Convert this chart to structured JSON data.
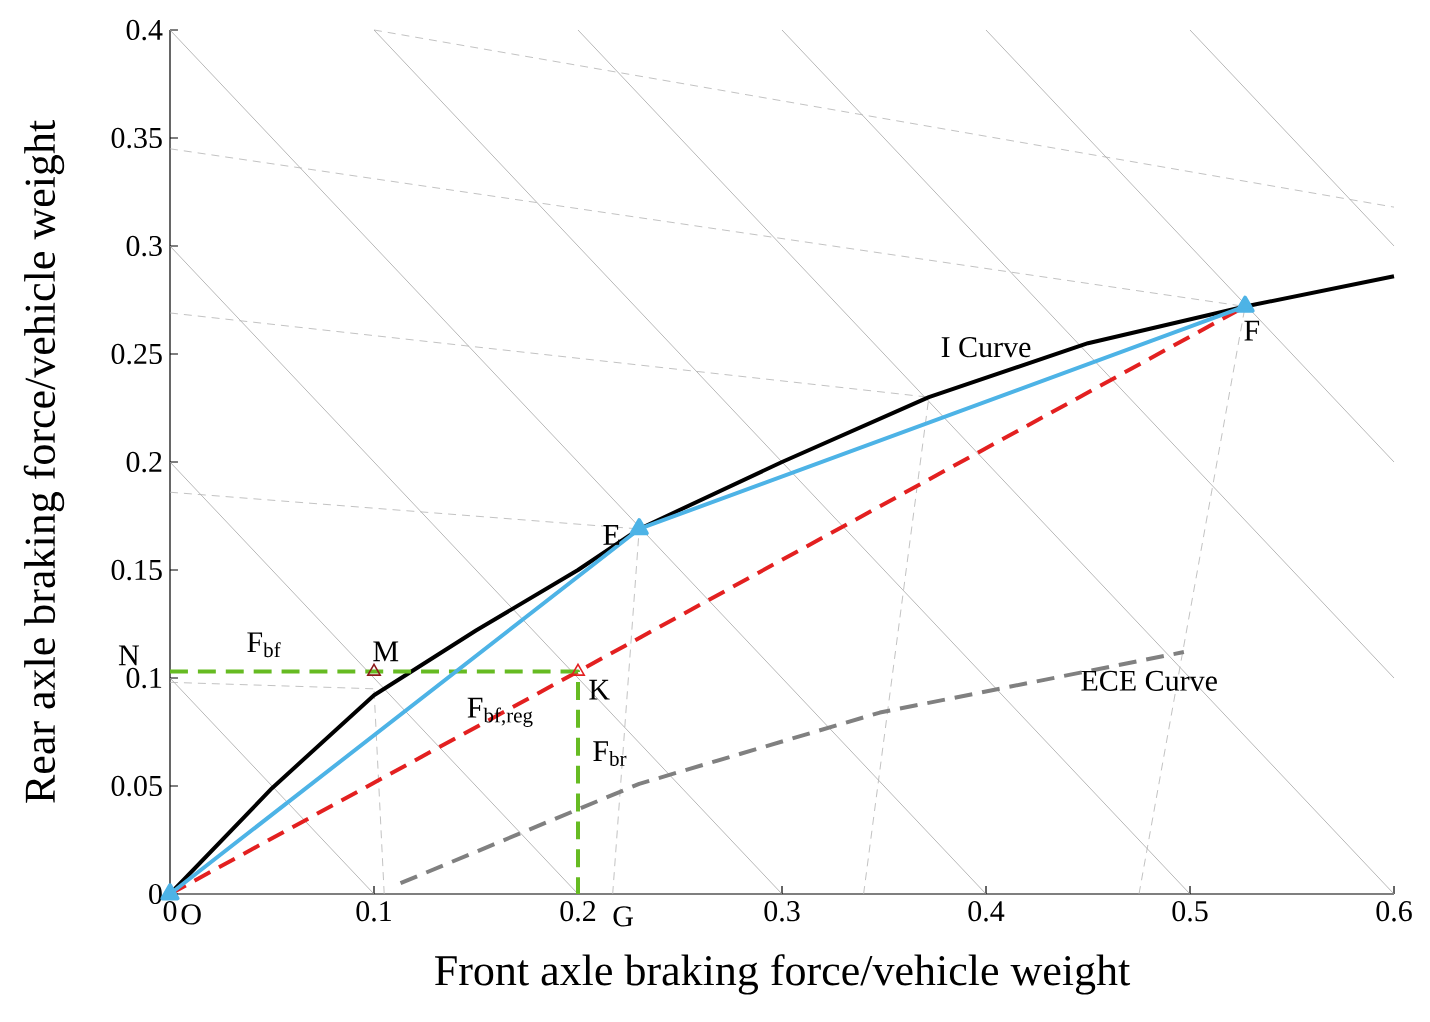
{
  "chart_data": {
    "type": "line",
    "xlabel": "Front axle braking force/vehicle weight",
    "ylabel": "Rear axle braking force/vehicle weight",
    "xlim": [
      0,
      0.6
    ],
    "ylim": [
      0,
      0.4
    ],
    "xticks": [
      0,
      0.1,
      0.2,
      0.3,
      0.4,
      0.5,
      0.6
    ],
    "yticks": [
      0,
      0.05,
      0.1,
      0.15,
      0.2,
      0.25,
      0.3,
      0.35,
      0.4
    ],
    "series": [
      {
        "color": "#a6a6a6",
        "line_style": "solid",
        "x": [
          0,
          0.1
        ],
        "values": [
          0.1,
          0
        ]
      },
      {
        "color": "#a6a6a6",
        "line_style": "solid",
        "x": [
          0,
          0.2
        ],
        "values": [
          0.2,
          0
        ]
      },
      {
        "color": "#a6a6a6",
        "line_style": "solid",
        "x": [
          0,
          0.3
        ],
        "values": [
          0.3,
          0
        ]
      },
      {
        "color": "#a6a6a6",
        "line_style": "solid",
        "x": [
          0,
          0.4
        ],
        "values": [
          0.4,
          0
        ]
      },
      {
        "color": "#a6a6a6",
        "line_style": "solid",
        "x": [
          0.1,
          0.5
        ],
        "values": [
          0.4,
          0
        ]
      },
      {
        "color": "#a6a6a6",
        "line_style": "solid",
        "x": [
          0.2,
          0.6
        ],
        "values": [
          0.4,
          0
        ]
      },
      {
        "color": "#a6a6a6",
        "line_style": "solid",
        "x": [
          0.3,
          0.6
        ],
        "values": [
          0.4,
          0.1
        ]
      },
      {
        "color": "#a6a6a6",
        "line_style": "solid",
        "x": [
          0.4,
          0.6
        ],
        "values": [
          0.4,
          0.2
        ]
      },
      {
        "color": "#a6a6a6",
        "line_style": "solid",
        "x": [
          0.5,
          0.6
        ],
        "values": [
          0.4,
          0.3
        ]
      },
      {
        "color": "#b3b3b3",
        "line_style": "dashed",
        "x": [
          0,
          0.1
        ],
        "values": [
          0.098,
          0.095
        ]
      },
      {
        "color": "#b3b3b3",
        "line_style": "dashed",
        "x": [
          0.105,
          0.1
        ],
        "values": [
          0,
          0.095
        ]
      },
      {
        "color": "#b3b3b3",
        "line_style": "dashed",
        "x": [
          0,
          0.23
        ],
        "values": [
          0.186,
          0.169
        ]
      },
      {
        "color": "#b3b3b3",
        "line_style": "dashed",
        "x": [
          0.217,
          0.23
        ],
        "values": [
          0,
          0.169
        ]
      },
      {
        "color": "#b3b3b3",
        "line_style": "dashed",
        "x": [
          0,
          0.372
        ],
        "values": [
          0.269,
          0.23
        ]
      },
      {
        "color": "#b3b3b3",
        "line_style": "dashed",
        "x": [
          0.34,
          0.372
        ],
        "values": [
          0,
          0.23
        ]
      },
      {
        "color": "#b3b3b3",
        "line_style": "dashed",
        "x": [
          0,
          0.527
        ],
        "values": [
          0.345,
          0.272
        ]
      },
      {
        "color": "#b3b3b3",
        "line_style": "dashed",
        "x": [
          0.475,
          0.527
        ],
        "values": [
          0,
          0.272
        ]
      },
      {
        "color": "#b3b3b3",
        "line_style": "dashed",
        "x": [
          0.1,
          0.6
        ],
        "values": [
          0.4,
          0.318
        ]
      },
      {
        "color": "#000000",
        "line_style": "solid",
        "x": [
          0,
          0.05,
          0.1,
          0.15,
          0.2,
          0.23,
          0.3,
          0.372,
          0.45,
          0.527,
          0.6
        ],
        "values": [
          0,
          0.049,
          0.092,
          0.122,
          0.15,
          0.169,
          0.2,
          0.23,
          0.255,
          0.272,
          0.286
        ]
      },
      {
        "color": "#808080",
        "line_style": "dashed",
        "x": [
          0.113,
          0.23,
          0.348,
          0.497
        ],
        "values": [
          0.005,
          0.051,
          0.084,
          0.112
        ]
      },
      {
        "color": "#e32020",
        "line_style": "dashed",
        "x": [
          0,
          0.2,
          0.527
        ],
        "values": [
          0,
          0.103,
          0.272
        ]
      },
      {
        "color": "#66bb22",
        "line_style": "dashed",
        "x": [
          0,
          0.2,
          0.2
        ],
        "values": [
          0.103,
          0.103,
          0
        ]
      },
      {
        "color": "#4db3e6",
        "line_style": "solid",
        "marker": "triangle",
        "x": [
          0,
          0.23,
          0.527
        ],
        "values": [
          0,
          0.169,
          0.272
        ]
      },
      {
        "type": "scatter",
        "color": "#e32020",
        "marker": "triangle",
        "x": [
          0.2
        ],
        "values": [
          0.103
        ]
      },
      {
        "type": "scatter",
        "color": "#8b1a1a",
        "marker": "triangle",
        "x": [
          0.1
        ],
        "values": [
          0.103
        ]
      }
    ],
    "annotations": [
      {
        "text": "O",
        "x": 0,
        "y": 0
      },
      {
        "text": "E",
        "x": 0.23,
        "y": 0.169
      },
      {
        "text": "F",
        "x": 0.527,
        "y": 0.272
      },
      {
        "text": "M",
        "x": 0.1,
        "y": 0.103
      },
      {
        "text": "N",
        "x": 0,
        "y": 0.103
      },
      {
        "text": "K",
        "x": 0.2,
        "y": 0.103
      },
      {
        "text": "G",
        "x": 0.2,
        "y": 0
      },
      {
        "text": "F$_{bf}$",
        "x": 0.05,
        "y": 0.103
      },
      {
        "text": "F$_{bf,reg}$",
        "x": 0.16,
        "y": 0.103
      },
      {
        "text": "F$_{br}$",
        "x": 0.2,
        "y": 0.065
      },
      {
        "text": "I Curve",
        "x": 0.4,
        "y": 0.24
      },
      {
        "text": "ECE Curve",
        "x": 0.48,
        "y": 0.11
      }
    ]
  }
}
